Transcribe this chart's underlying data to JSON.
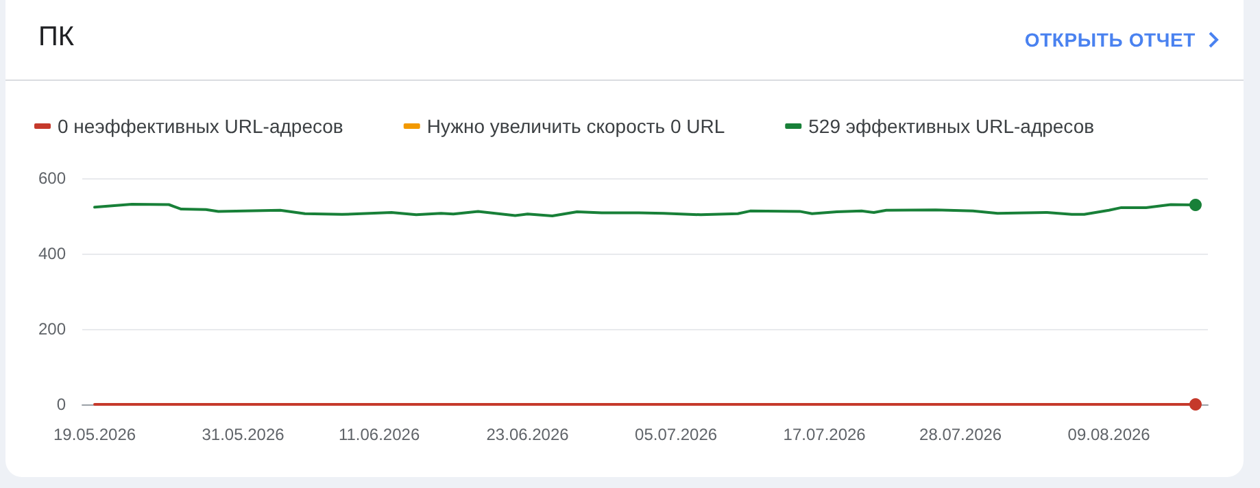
{
  "chart_data": {
    "type": "line",
    "title": "ПК",
    "annotations": [
      "ОТКРЫТЬ ОТЧЕТ"
    ],
    "xlim": [
      "2026-05-18",
      "2026-08-17"
    ],
    "xticks": [
      {
        "value": "2026-05-19",
        "label": "19.05.2026"
      },
      {
        "value": "2026-05-31",
        "label": "31.05.2026"
      },
      {
        "value": "2026-06-11",
        "label": "11.06.2026"
      },
      {
        "value": "2026-06-23",
        "label": "23.06.2026"
      },
      {
        "value": "2026-07-05",
        "label": "05.07.2026"
      },
      {
        "value": "2026-07-17",
        "label": "17.07.2026"
      },
      {
        "value": "2026-07-28",
        "label": "28.07.2026"
      },
      {
        "value": "2026-08-09",
        "label": "09.08.2026"
      }
    ],
    "ylim": [
      0,
      600
    ],
    "yticks": [
      0,
      200,
      400,
      600
    ],
    "grid": "y",
    "legend": "top left",
    "line_style": "solid",
    "series": [
      {
        "name": "0 неэффективных URL-адресов",
        "color": "#c5392b",
        "x": [
          "2026-05-19",
          "2026-08-16"
        ],
        "values": [
          0,
          0
        ]
      },
      {
        "name": "Нужно увеличить скорость 0 URL",
        "color": "#f29900"
      },
      {
        "name": "529 эффективных URL-адресов",
        "color": "#188038",
        "x": [
          "2026-05-19",
          "2026-05-22",
          "2026-05-25",
          "2026-05-26",
          "2026-05-28",
          "2026-05-29",
          "2026-06-03",
          "2026-06-05",
          "2026-06-08",
          "2026-06-12",
          "2026-06-14",
          "2026-06-16",
          "2026-06-17",
          "2026-06-19",
          "2026-06-22",
          "2026-06-23",
          "2026-06-25",
          "2026-06-27",
          "2026-06-29",
          "2026-07-02",
          "2026-07-04",
          "2026-07-07",
          "2026-07-10",
          "2026-07-11",
          "2026-07-15",
          "2026-07-16",
          "2026-07-18",
          "2026-07-20",
          "2026-07-21",
          "2026-07-22",
          "2026-07-26",
          "2026-07-29",
          "2026-07-31",
          "2026-08-04",
          "2026-08-06",
          "2026-08-07",
          "2026-08-09",
          "2026-08-10",
          "2026-08-12",
          "2026-08-14",
          "2026-08-16"
        ],
        "values": [
          523,
          531,
          530,
          518,
          517,
          512,
          515,
          506,
          504,
          509,
          503,
          507,
          505,
          512,
          501,
          505,
          500,
          511,
          508,
          508,
          507,
          503,
          506,
          513,
          512,
          506,
          511,
          513,
          509,
          515,
          516,
          513,
          507,
          509,
          504,
          504,
          515,
          522,
          522,
          530,
          529
        ]
      }
    ]
  }
}
